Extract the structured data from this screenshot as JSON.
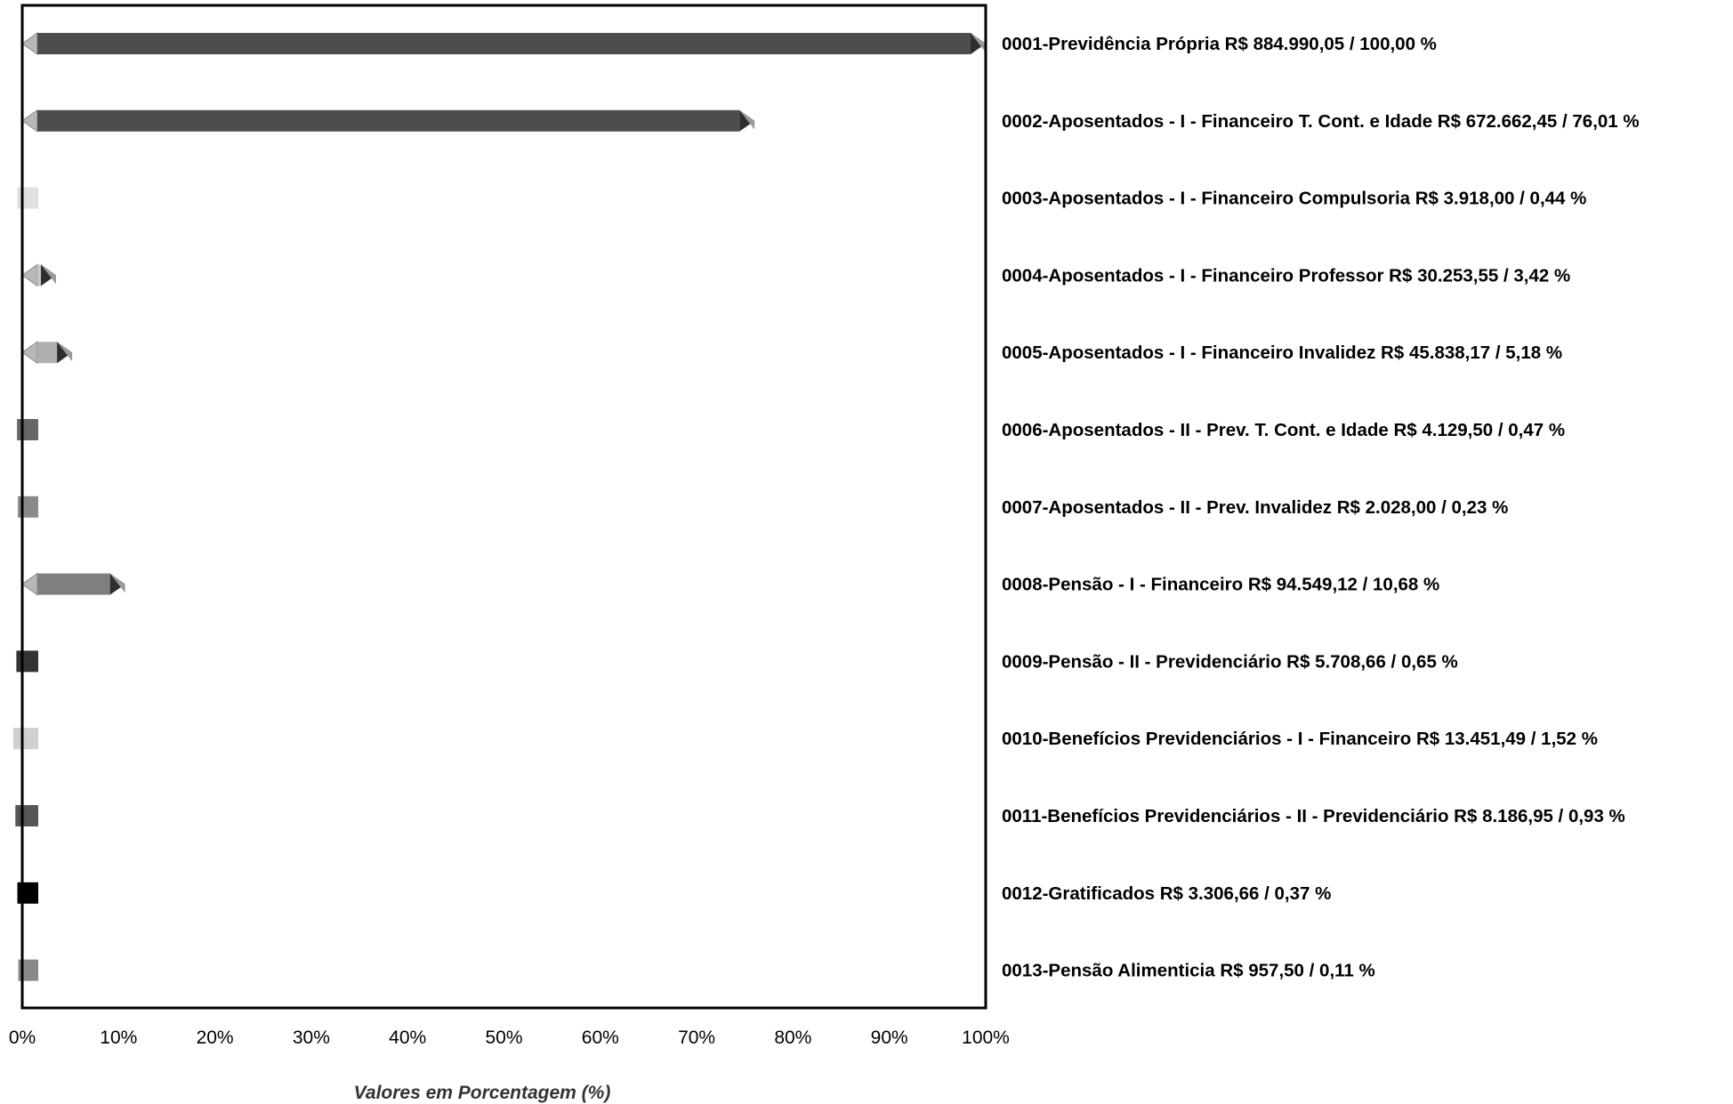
{
  "chart_data": {
    "type": "bar",
    "orientation": "horizontal",
    "xlabel": "Valores em Porcentagem (%)",
    "xlim": [
      0,
      100
    ],
    "ticks": [
      "0%",
      "10%",
      "20%",
      "30%",
      "40%",
      "50%",
      "60%",
      "70%",
      "80%",
      "90%",
      "100%"
    ],
    "grid": false,
    "items": [
      {
        "label": "0001-Previdência Própria  R$ 884.990,05 / 100,00 %",
        "value": 100.0,
        "color": "#4d4d4d",
        "bevel": true
      },
      {
        "label": "0002-Aposentados - I  - Financeiro T. Cont. e Idade  R$ 672.662,45 / 76,01 %",
        "value": 76.01,
        "color": "#4d4d4d",
        "bevel": true
      },
      {
        "label": "0003-Aposentados - I  - Financeiro Compulsoria  R$ 3.918,00 / 0,44 %",
        "value": 0.44,
        "color": "#e0e0e0",
        "bevel": false
      },
      {
        "label": "0004-Aposentados - I  - Financeiro Professor  R$ 30.253,55 / 3,42 %",
        "value": 3.42,
        "color": "#c8c8c8",
        "bevel": true
      },
      {
        "label": "0005-Aposentados - I  - Financeiro Invalidez  R$ 45.838,17 / 5,18 %",
        "value": 5.18,
        "color": "#b0b0b0",
        "bevel": true
      },
      {
        "label": "0006-Aposentados - II - Prev. T. Cont. e Idade  R$ 4.129,50 / 0,47 %",
        "value": 0.47,
        "color": "#666666",
        "bevel": false
      },
      {
        "label": "0007-Aposentados - II - Prev. Invalidez  R$ 2.028,00 / 0,23 %",
        "value": 0.23,
        "color": "#8a8a8a",
        "bevel": false
      },
      {
        "label": "0008-Pensão - I  - Financeiro  R$ 94.549,12 / 10,68 %",
        "value": 10.68,
        "color": "#808080",
        "bevel": true
      },
      {
        "label": "0009-Pensão - II - Previdenciário  R$ 5.708,66 / 0,65 %",
        "value": 0.65,
        "color": "#333333",
        "bevel": false
      },
      {
        "label": "0010-Benefícios Previdenciários - I  - Financeiro  R$ 13.451,49 / 1,52 %",
        "value": 1.52,
        "color": "#d0d0d0",
        "bevel": false
      },
      {
        "label": "0011-Benefícios Previdenciários - II - Previdenciário  R$ 8.186,95 / 0,93 %",
        "value": 0.93,
        "color": "#555555",
        "bevel": false
      },
      {
        "label": "0012-Gratificados  R$ 3.306,66 / 0,37 %",
        "value": 0.37,
        "color": "#000000",
        "bevel": false
      },
      {
        "label": "0013-Pensão Alimenticia  R$ 957,50 / 0,11 %",
        "value": 0.11,
        "color": "#888888",
        "bevel": false
      }
    ]
  }
}
